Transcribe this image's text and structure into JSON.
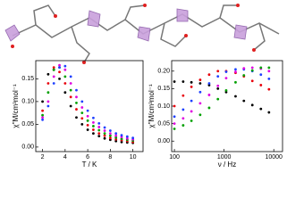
{
  "chart_data": [
    {
      "type": "scatter",
      "xlabel": "T / K",
      "ylabel": "χ''M/cm³mol⁻¹",
      "xlim": [
        1.4,
        10.9
      ],
      "xticks": [
        2,
        4,
        6,
        8,
        10
      ],
      "ylim": [
        -0.01,
        0.19
      ],
      "yticks": [
        {
          "value": 0,
          "label": "0.00"
        },
        {
          "value": 0.05,
          "label": "0.05"
        },
        {
          "value": 0.1,
          "label": "0.10"
        },
        {
          "value": 0.15,
          "label": "0.15"
        }
      ],
      "x": [
        2,
        2.5,
        3,
        3.5,
        4,
        4.5,
        5,
        5.5,
        6,
        6.5,
        7,
        7.5,
        8,
        8.5,
        9,
        9.5,
        10
      ],
      "series": [
        {
          "color": "#000000",
          "values": [
            0.1,
            0.16,
            0.17,
            0.15,
            0.12,
            0.09,
            0.065,
            0.05,
            0.038,
            0.03,
            0.024,
            0.019,
            0.016,
            0.013,
            0.011,
            0.01,
            0.009
          ]
        },
        {
          "color": "#e8000b",
          "values": [
            0.08,
            0.14,
            0.175,
            0.165,
            0.14,
            0.11,
            0.083,
            0.063,
            0.048,
            0.038,
            0.03,
            0.025,
            0.02,
            0.017,
            0.015,
            0.013,
            0.011
          ]
        },
        {
          "color": "#00a000",
          "values": [
            0.07,
            0.12,
            0.17,
            0.175,
            0.155,
            0.125,
            0.097,
            0.075,
            0.058,
            0.046,
            0.037,
            0.03,
            0.025,
            0.021,
            0.018,
            0.016,
            0.014
          ]
        },
        {
          "color": "#e000e0",
          "values": [
            0.065,
            0.1,
            0.155,
            0.18,
            0.17,
            0.14,
            0.11,
            0.087,
            0.068,
            0.054,
            0.044,
            0.036,
            0.03,
            0.025,
            0.022,
            0.019,
            0.017
          ]
        },
        {
          "color": "#1e40ff",
          "values": [
            0.06,
            0.09,
            0.14,
            0.175,
            0.178,
            0.155,
            0.125,
            0.1,
            0.08,
            0.064,
            0.052,
            0.043,
            0.036,
            0.03,
            0.026,
            0.023,
            0.02
          ]
        }
      ]
    },
    {
      "type": "scatter",
      "xlabel": "ν / Hz",
      "ylabel": "χ''M/cm³mol⁻¹",
      "xlog": true,
      "xlim": [
        88,
        15000
      ],
      "xticks": [
        100,
        1000,
        10000
      ],
      "ylim": [
        -0.03,
        0.23
      ],
      "yticks": [
        {
          "value": 0,
          "label": "0.00"
        },
        {
          "value": 0.05,
          "label": "0.05"
        },
        {
          "value": 0.1,
          "label": "0.10"
        },
        {
          "value": 0.15,
          "label": "0.15"
        },
        {
          "value": 0.2,
          "label": "0.20"
        }
      ],
      "x": [
        100,
        150,
        220,
        330,
        500,
        750,
        1100,
        1700,
        2500,
        3700,
        5500,
        8000
      ],
      "series": [
        {
          "color": "#000000",
          "values": [
            0.17,
            0.17,
            0.168,
            0.165,
            0.16,
            0.15,
            0.14,
            0.128,
            0.115,
            0.103,
            0.092,
            0.082
          ]
        },
        {
          "color": "#e8000b",
          "values": [
            0.1,
            0.13,
            0.155,
            0.175,
            0.19,
            0.2,
            0.2,
            0.195,
            0.185,
            0.172,
            0.16,
            0.148
          ]
        },
        {
          "color": "#1e40ff",
          "values": [
            0.07,
            0.09,
            0.115,
            0.14,
            0.165,
            0.185,
            0.198,
            0.205,
            0.205,
            0.2,
            0.19,
            0.178
          ]
        },
        {
          "color": "#e000e0",
          "values": [
            0.05,
            0.065,
            0.085,
            0.108,
            0.132,
            0.158,
            0.18,
            0.198,
            0.208,
            0.21,
            0.207,
            0.2
          ]
        },
        {
          "color": "#00a000",
          "values": [
            0.035,
            0.045,
            0.058,
            0.075,
            0.095,
            0.12,
            0.145,
            0.168,
            0.188,
            0.202,
            0.21,
            0.21
          ]
        }
      ]
    }
  ]
}
